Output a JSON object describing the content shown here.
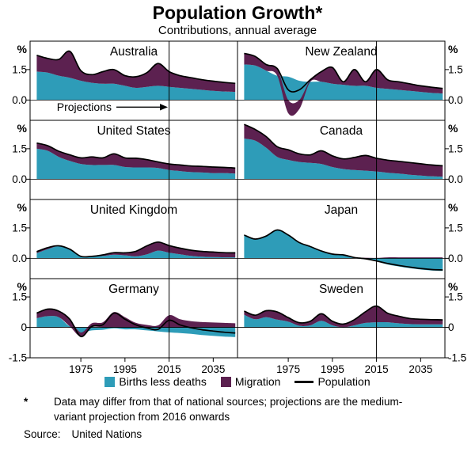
{
  "title": "Population Growth*",
  "subtitle": "Contributions, annual average",
  "legend": [
    {
      "label": "Births less deaths",
      "type": "area",
      "color": "#2E9CB8"
    },
    {
      "label": "Migration",
      "type": "area",
      "color": "#5C2150"
    },
    {
      "label": "Population",
      "type": "line",
      "color": "#000000"
    }
  ],
  "footnote_symbol": "*",
  "footnote_text": "Data may differ from that of national sources; projections are the medium-variant projection from 2016 onwards",
  "source_label": "Source:",
  "source_text": "United Nations",
  "chart_data": {
    "type": "area",
    "stacked": true,
    "y_unit": "%",
    "colors": {
      "births": "#2E9CB8",
      "migration": "#5C2150",
      "population": "#000000"
    },
    "series_names": [
      "Births less deaths",
      "Migration",
      "Population"
    ],
    "population_is_sum_of_components": true,
    "projection": {
      "label": "Projections",
      "start_year": 2015
    },
    "x": [
      1955,
      1960,
      1965,
      1970,
      1975,
      1980,
      1985,
      1990,
      1995,
      2000,
      2005,
      2010,
      2015,
      2020,
      2025,
      2030,
      2035,
      2040,
      2045
    ],
    "x_axis": {
      "range": [
        1952,
        2046
      ],
      "ticks": [
        {
          "label": "1975",
          "value": 1975
        },
        {
          "label": "1995",
          "value": 1995
        },
        {
          "label": "2015",
          "value": 2015
        },
        {
          "label": "2035",
          "value": 2035
        }
      ]
    },
    "rows": [
      {
        "range": [
          -1.0,
          2.9
        ],
        "ticks": [
          {
            "label": "1.5",
            "value": 1.5
          },
          {
            "label": "0.0",
            "value": 0.0
          }
        ]
      },
      {
        "range": [
          -1.0,
          2.9
        ],
        "ticks": [
          {
            "label": "1.5",
            "value": 1.5
          },
          {
            "label": "0.0",
            "value": 0.0
          }
        ]
      },
      {
        "range": [
          -1.0,
          2.9
        ],
        "ticks": [
          {
            "label": "1.5",
            "value": 1.5
          },
          {
            "label": "0.0",
            "value": 0.0
          }
        ]
      },
      {
        "range": [
          -1.5,
          2.4
        ],
        "ticks": [
          {
            "label": "1.5",
            "value": 1.5
          },
          {
            "label": "0",
            "value": 0.0
          },
          {
            "label": "-1.5",
            "value": -1.5
          }
        ]
      }
    ],
    "panels": [
      {
        "title": "Australia",
        "row": 0,
        "col": 0,
        "births": [
          1.4,
          1.35,
          1.2,
          1.1,
          0.95,
          0.85,
          0.8,
          0.8,
          0.7,
          0.6,
          0.65,
          0.7,
          0.65,
          0.6,
          0.55,
          0.5,
          0.45,
          0.42,
          0.4
        ],
        "migration": [
          0.8,
          0.7,
          0.8,
          1.3,
          0.5,
          0.4,
          0.6,
          0.7,
          0.5,
          0.55,
          0.7,
          1.1,
          0.75,
          0.6,
          0.55,
          0.5,
          0.48,
          0.45,
          0.42
        ]
      },
      {
        "title": "New Zealand",
        "row": 0,
        "col": 1,
        "births": [
          1.75,
          1.7,
          1.45,
          1.2,
          1.15,
          0.95,
          0.9,
          0.9,
          0.8,
          0.75,
          0.7,
          0.7,
          0.6,
          0.55,
          0.5,
          0.45,
          0.4,
          0.35,
          0.32
        ],
        "migration": [
          0.55,
          0.45,
          0.3,
          0.35,
          -0.65,
          -0.45,
          0.1,
          0.5,
          0.8,
          0.15,
          0.8,
          0.2,
          0.9,
          0.45,
          0.4,
          0.35,
          0.3,
          0.28,
          0.25
        ]
      },
      {
        "title": "United States",
        "row": 1,
        "col": 0,
        "births": [
          1.5,
          1.4,
          1.1,
          0.9,
          0.75,
          0.7,
          0.7,
          0.7,
          0.6,
          0.58,
          0.58,
          0.55,
          0.45,
          0.4,
          0.35,
          0.33,
          0.3,
          0.3,
          0.28
        ],
        "migration": [
          0.28,
          0.25,
          0.28,
          0.3,
          0.3,
          0.4,
          0.35,
          0.55,
          0.45,
          0.45,
          0.38,
          0.3,
          0.3,
          0.3,
          0.3,
          0.3,
          0.3,
          0.28,
          0.27
        ]
      },
      {
        "title": "Canada",
        "row": 1,
        "col": 1,
        "births": [
          2.0,
          1.9,
          1.55,
          1.1,
          0.95,
          0.85,
          0.8,
          0.75,
          0.6,
          0.5,
          0.45,
          0.42,
          0.38,
          0.32,
          0.28,
          0.22,
          0.18,
          0.14,
          0.12
        ],
        "migration": [
          0.7,
          0.55,
          0.55,
          0.5,
          0.5,
          0.4,
          0.4,
          0.65,
          0.55,
          0.5,
          0.62,
          0.75,
          0.65,
          0.62,
          0.6,
          0.6,
          0.58,
          0.56,
          0.54
        ]
      },
      {
        "title": "United Kingdom",
        "row": 2,
        "col": 0,
        "births": [
          0.25,
          0.45,
          0.6,
          0.45,
          0.1,
          0.08,
          0.12,
          0.18,
          0.15,
          0.1,
          0.2,
          0.38,
          0.28,
          0.2,
          0.12,
          0.08,
          0.06,
          0.05,
          0.05
        ],
        "migration": [
          0.08,
          0.08,
          0.02,
          0.0,
          0.0,
          0.02,
          0.05,
          0.1,
          0.12,
          0.25,
          0.42,
          0.42,
          0.35,
          0.3,
          0.28,
          0.26,
          0.25,
          0.23,
          0.22
        ]
      },
      {
        "title": "Japan",
        "row": 2,
        "col": 1,
        "births": [
          1.15,
          0.95,
          1.1,
          1.4,
          1.15,
          0.78,
          0.58,
          0.33,
          0.21,
          0.14,
          0.02,
          -0.05,
          -0.15,
          -0.3,
          -0.4,
          -0.48,
          -0.55,
          -0.6,
          -0.62
        ],
        "migration": [
          0.0,
          0.0,
          0.0,
          0.0,
          0.0,
          0.0,
          0.0,
          0.03,
          0.0,
          0.03,
          0.02,
          0.03,
          0.02,
          0.05,
          0.05,
          0.05,
          0.05,
          0.05,
          0.05
        ]
      },
      {
        "title": "Germany",
        "row": 3,
        "col": 0,
        "births": [
          0.45,
          0.55,
          0.5,
          0.05,
          -0.25,
          -0.15,
          -0.12,
          -0.05,
          -0.1,
          -0.1,
          -0.15,
          -0.2,
          -0.25,
          -0.28,
          -0.32,
          -0.38,
          -0.42,
          -0.46,
          -0.48
        ],
        "migration": [
          0.25,
          0.35,
          0.3,
          0.35,
          -0.2,
          0.2,
          0.25,
          0.75,
          0.5,
          0.22,
          0.12,
          0.1,
          0.6,
          0.4,
          0.3,
          0.26,
          0.24,
          0.22,
          0.2
        ]
      },
      {
        "title": "Sweden",
        "row": 3,
        "col": 1,
        "births": [
          0.62,
          0.4,
          0.5,
          0.38,
          0.28,
          0.08,
          0.1,
          0.32,
          0.1,
          -0.02,
          0.1,
          0.22,
          0.25,
          0.25,
          0.2,
          0.16,
          0.15,
          0.15,
          0.15
        ],
        "migration": [
          0.18,
          0.2,
          0.32,
          0.38,
          0.2,
          0.15,
          0.2,
          0.35,
          0.2,
          0.18,
          0.28,
          0.55,
          0.8,
          0.45,
          0.35,
          0.28,
          0.25,
          0.23,
          0.22
        ]
      }
    ]
  }
}
